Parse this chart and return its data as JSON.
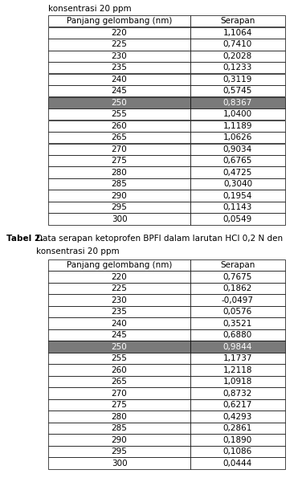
{
  "table1_caption_line1": "konsentrasi 20 ppm",
  "table2_caption_line1": "Tabel 2.",
  "table2_caption_line2": "Data serapan ketoprofen BPFI dalam larutan HCl 0,2 N den",
  "table2_caption_line3": "konsentrasi 20 ppm",
  "col_headers": [
    "Panjang gelombang (nm)",
    "Serapan"
  ],
  "table1_data": [
    [
      "220",
      "1,1064"
    ],
    [
      "225",
      "0,7410"
    ],
    [
      "230",
      "0,2028"
    ],
    [
      "235",
      "0,1233"
    ],
    [
      "240",
      "0,3119"
    ],
    [
      "245",
      "0,5745"
    ],
    [
      "250",
      "0,8367"
    ],
    [
      "255",
      "1,0400"
    ],
    [
      "260",
      "1,1189"
    ],
    [
      "265",
      "1,0626"
    ],
    [
      "270",
      "0,9034"
    ],
    [
      "275",
      "0,6765"
    ],
    [
      "280",
      "0,4725"
    ],
    [
      "285",
      "0,3040"
    ],
    [
      "290",
      "0,1954"
    ],
    [
      "295",
      "0,1143"
    ],
    [
      "300",
      "0,0549"
    ]
  ],
  "table2_data": [
    [
      "220",
      "0,7675"
    ],
    [
      "225",
      "0,1862"
    ],
    [
      "230",
      "-0,0497"
    ],
    [
      "235",
      "0,0576"
    ],
    [
      "240",
      "0,3521"
    ],
    [
      "245",
      "0,6880"
    ],
    [
      "250",
      "0,9844"
    ],
    [
      "255",
      "1,1737"
    ],
    [
      "260",
      "1,2118"
    ],
    [
      "265",
      "1,0918"
    ],
    [
      "270",
      "0,8732"
    ],
    [
      "275",
      "0,6217"
    ],
    [
      "280",
      "0,4293"
    ],
    [
      "285",
      "0,2861"
    ],
    [
      "290",
      "0,1890"
    ],
    [
      "295",
      "0,1086"
    ],
    [
      "300",
      "0,0444"
    ]
  ],
  "highlight_row_table1": 6,
  "highlight_row_table2": 6,
  "highlight_color": "#7a7a7a",
  "highlight_text_color": "#ffffff",
  "font_size": 7.5,
  "caption_font_size": 7.5
}
